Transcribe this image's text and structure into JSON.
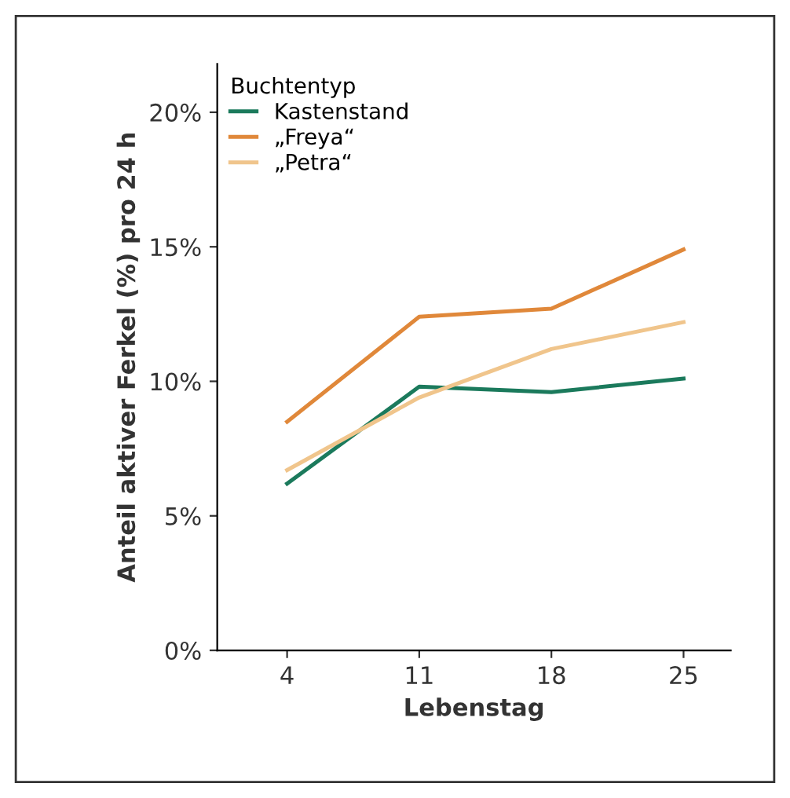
{
  "chart_data": {
    "type": "line",
    "xlabel": "Lebenstag",
    "ylabel": "Anteil aktiver Ferkel (%) pro 24 h",
    "legend_title": "Buchtentyp",
    "x": [
      4,
      11,
      18,
      25
    ],
    "series": [
      {
        "name": "Kastenstand",
        "color": "#1b7a5c",
        "values": [
          6.2,
          9.8,
          9.6,
          10.1
        ]
      },
      {
        "name": "„Freya“",
        "color": "#e0883a",
        "values": [
          8.5,
          12.4,
          12.7,
          14.9
        ]
      },
      {
        "name": "„Petra“",
        "color": "#f0c58c",
        "values": [
          6.7,
          9.4,
          11.2,
          12.2
        ]
      }
    ],
    "xlim": [
      0.3,
      27.5
    ],
    "ylim": [
      0,
      21.8
    ],
    "xticks": [
      4,
      11,
      18,
      25
    ],
    "yticks": [
      {
        "value": 0,
        "label": "0%"
      },
      {
        "value": 5,
        "label": "5%"
      },
      {
        "value": 10,
        "label": "10%"
      },
      {
        "value": 15,
        "label": "15%"
      },
      {
        "value": 20,
        "label": "20%"
      }
    ],
    "grid": false,
    "legend": "top left",
    "marker": "none",
    "line_style": "solid"
  }
}
